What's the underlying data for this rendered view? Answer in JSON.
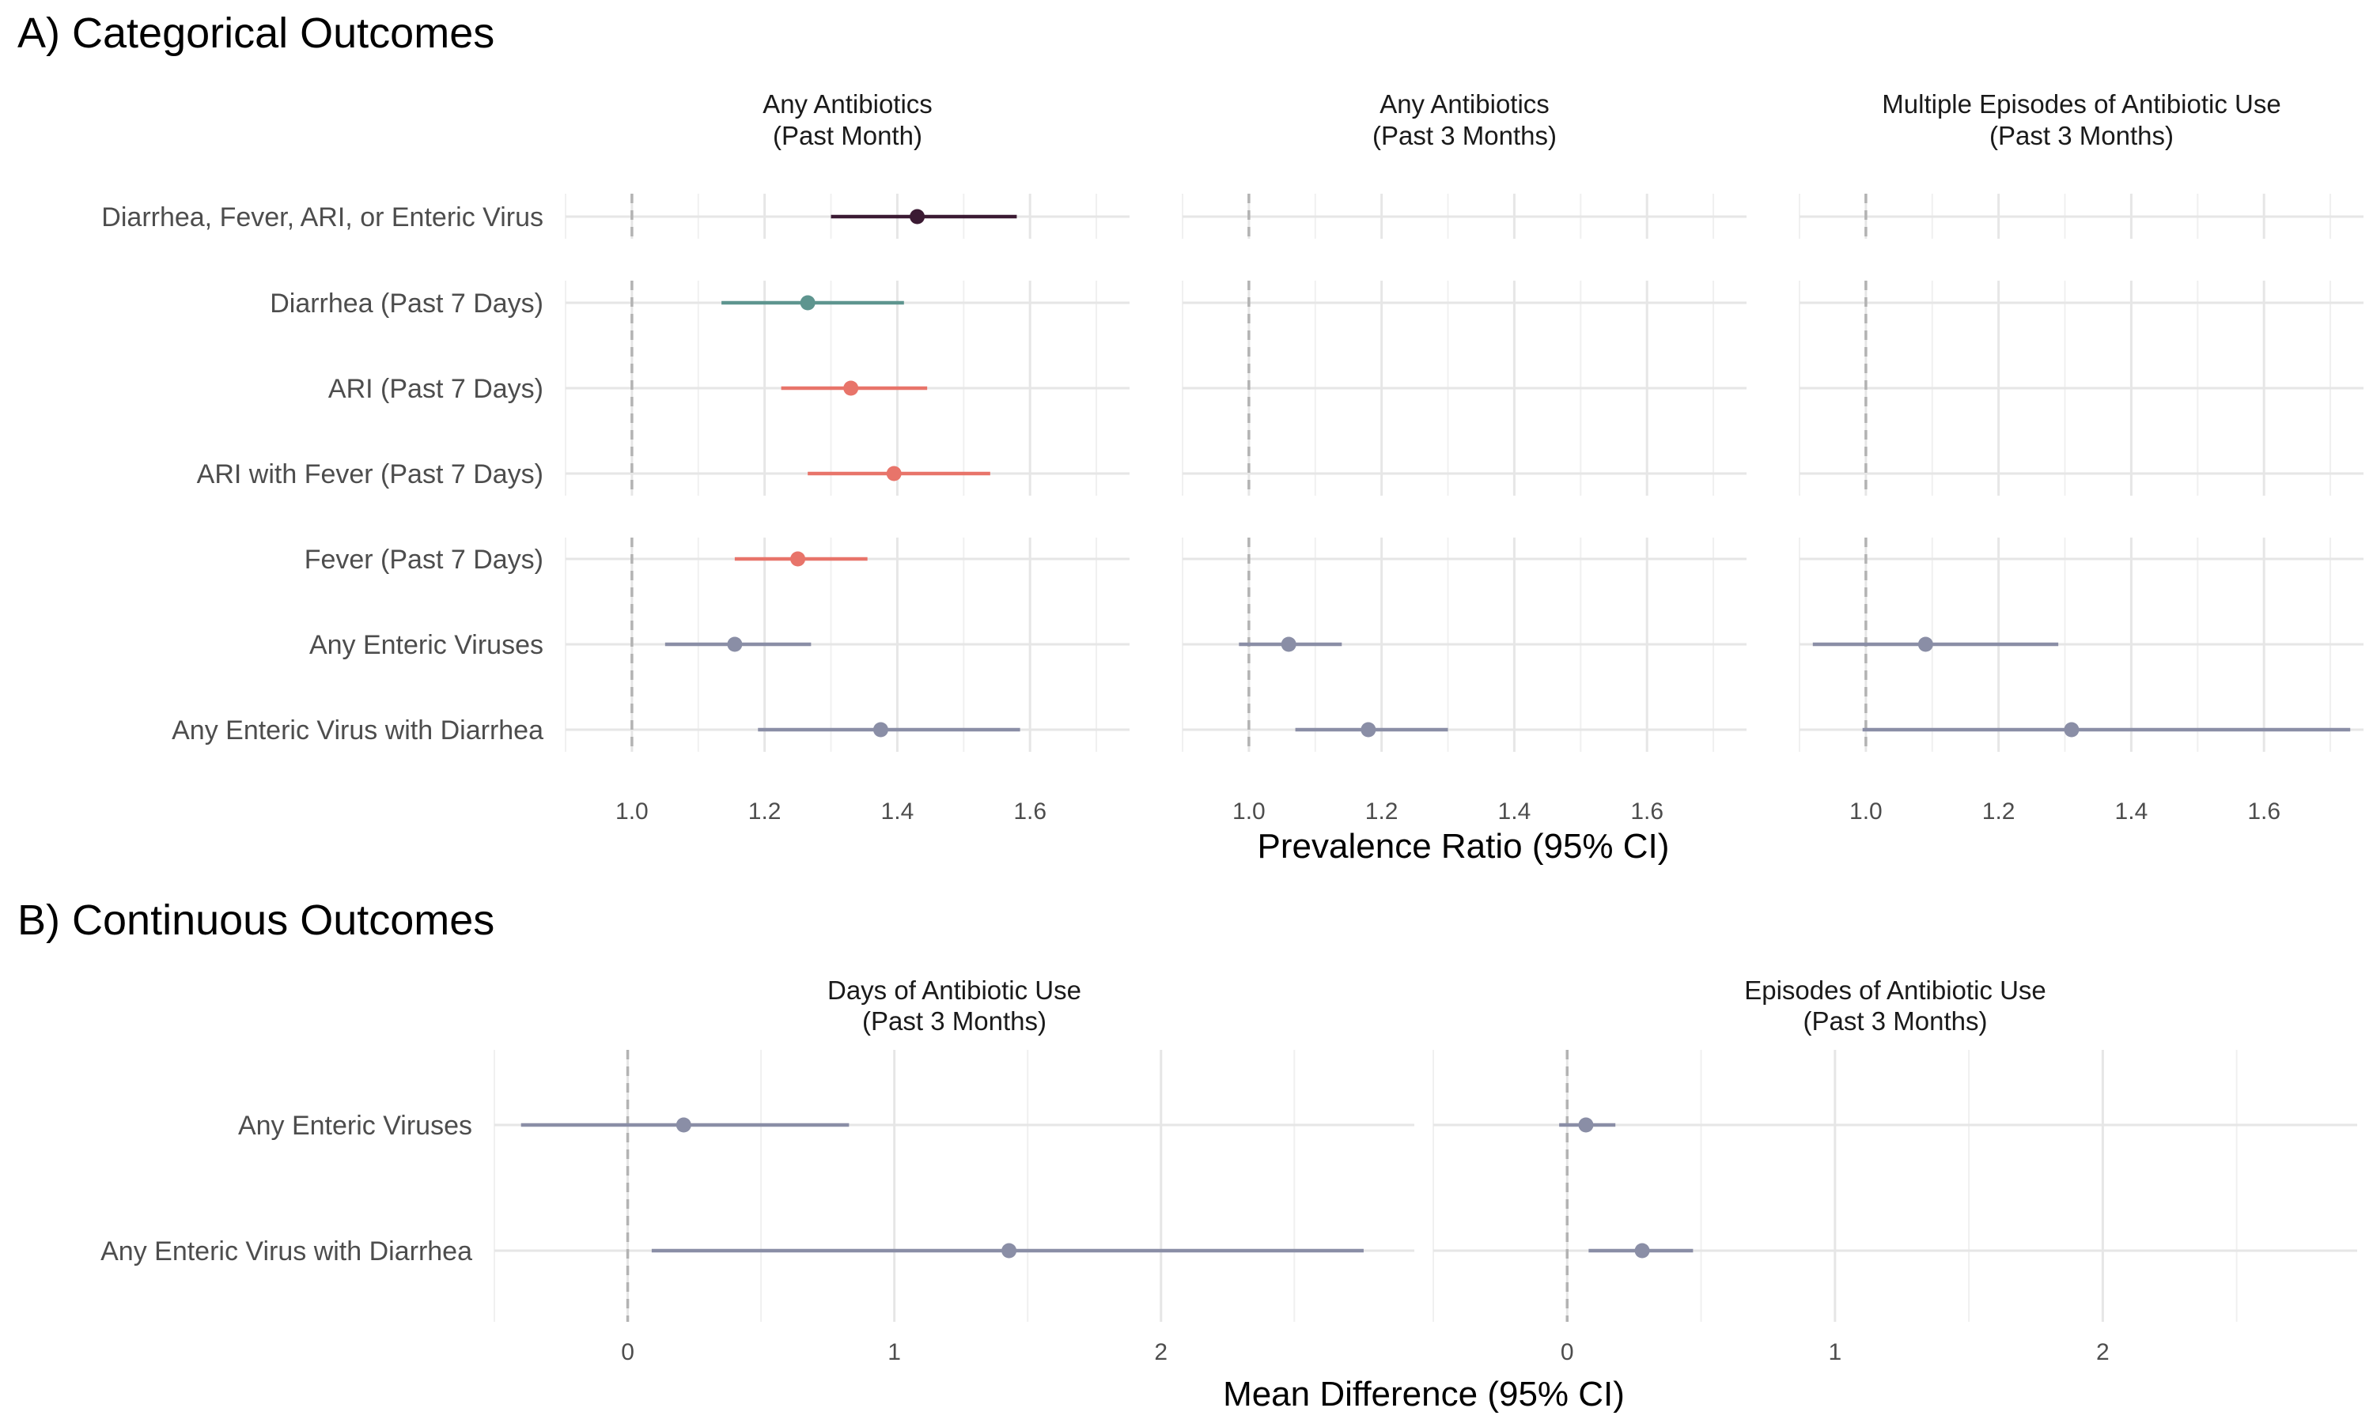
{
  "chart_data": [
    {
      "type": "forest",
      "panel_title": "A) Categorical Outcomes",
      "xlabel": "Prevalence Ratio (95% CI)",
      "xlim": [
        0.9,
        1.75
      ],
      "xticks": [
        "1.0",
        "1.2",
        "1.4",
        "1.6"
      ],
      "reference_line": 1.0,
      "rows": [
        "Diarrhea, Fever, ARI, or Enteric Virus",
        "Diarrhea (Past 7 Days)",
        "ARI (Past 7 Days)",
        "ARI with Fever (Past 7 Days)",
        "Fever (Past 7 Days)",
        "Any Enteric Viruses",
        "Any Enteric Virus with Diarrhea"
      ],
      "row_groups": [
        [
          0
        ],
        [
          1,
          2,
          3
        ],
        [
          4,
          5,
          6
        ]
      ],
      "colors": {
        "composite": "#3b1a33",
        "diarrhea": "#5e958f",
        "ari_fever": "#e8746a",
        "enteric": "#8a8ea6"
      },
      "facets": [
        {
          "title": [
            "Any Antibiotics",
            "(Past Month)"
          ],
          "points": [
            {
              "row": 0,
              "est": 1.43,
              "lo": 1.3,
              "hi": 1.58,
              "color": "composite"
            },
            {
              "row": 1,
              "est": 1.265,
              "lo": 1.135,
              "hi": 1.41,
              "color": "diarrhea"
            },
            {
              "row": 2,
              "est": 1.33,
              "lo": 1.225,
              "hi": 1.445,
              "color": "ari_fever"
            },
            {
              "row": 3,
              "est": 1.395,
              "lo": 1.265,
              "hi": 1.54,
              "color": "ari_fever"
            },
            {
              "row": 4,
              "est": 1.25,
              "lo": 1.155,
              "hi": 1.355,
              "color": "ari_fever"
            },
            {
              "row": 5,
              "est": 1.155,
              "lo": 1.05,
              "hi": 1.27,
              "color": "enteric"
            },
            {
              "row": 6,
              "est": 1.375,
              "lo": 1.19,
              "hi": 1.585,
              "color": "enteric"
            }
          ]
        },
        {
          "title": [
            "Any Antibiotics",
            "(Past 3 Months)"
          ],
          "points": [
            {
              "row": 5,
              "est": 1.06,
              "lo": 0.985,
              "hi": 1.14,
              "color": "enteric"
            },
            {
              "row": 6,
              "est": 1.18,
              "lo": 1.07,
              "hi": 1.3,
              "color": "enteric"
            }
          ]
        },
        {
          "title": [
            "Multiple Episodes of Antibiotic Use",
            "(Past 3 Months)"
          ],
          "points": [
            {
              "row": 5,
              "est": 1.09,
              "lo": 0.92,
              "hi": 1.29,
              "color": "enteric"
            },
            {
              "row": 6,
              "est": 1.31,
              "lo": 0.995,
              "hi": 1.73,
              "color": "enteric"
            }
          ]
        }
      ]
    },
    {
      "type": "forest",
      "panel_title": "B) Continuous Outcomes",
      "xlabel": "Mean Difference (95% CI)",
      "xlim": [
        -0.5,
        2.95
      ],
      "xticks": [
        "0",
        "1",
        "2"
      ],
      "reference_line": 0,
      "rows": [
        "Any Enteric Viruses",
        "Any Enteric Virus with Diarrhea"
      ],
      "colors": {
        "enteric": "#8a8ea6"
      },
      "facets": [
        {
          "title": [
            "Days of Antibiotic Use",
            "(Past 3 Months)"
          ],
          "points": [
            {
              "row": 0,
              "est": 0.21,
              "lo": -0.4,
              "hi": 0.83,
              "color": "enteric"
            },
            {
              "row": 1,
              "est": 1.43,
              "lo": 0.09,
              "hi": 2.76,
              "color": "enteric"
            }
          ]
        },
        {
          "title": [
            "Episodes of Antibiotic Use",
            "(Past 3 Months)"
          ],
          "points": [
            {
              "row": 0,
              "est": 0.07,
              "lo": -0.03,
              "hi": 0.18,
              "color": "enteric"
            },
            {
              "row": 1,
              "est": 0.28,
              "lo": 0.08,
              "hi": 0.47,
              "color": "enteric"
            }
          ]
        }
      ]
    }
  ]
}
